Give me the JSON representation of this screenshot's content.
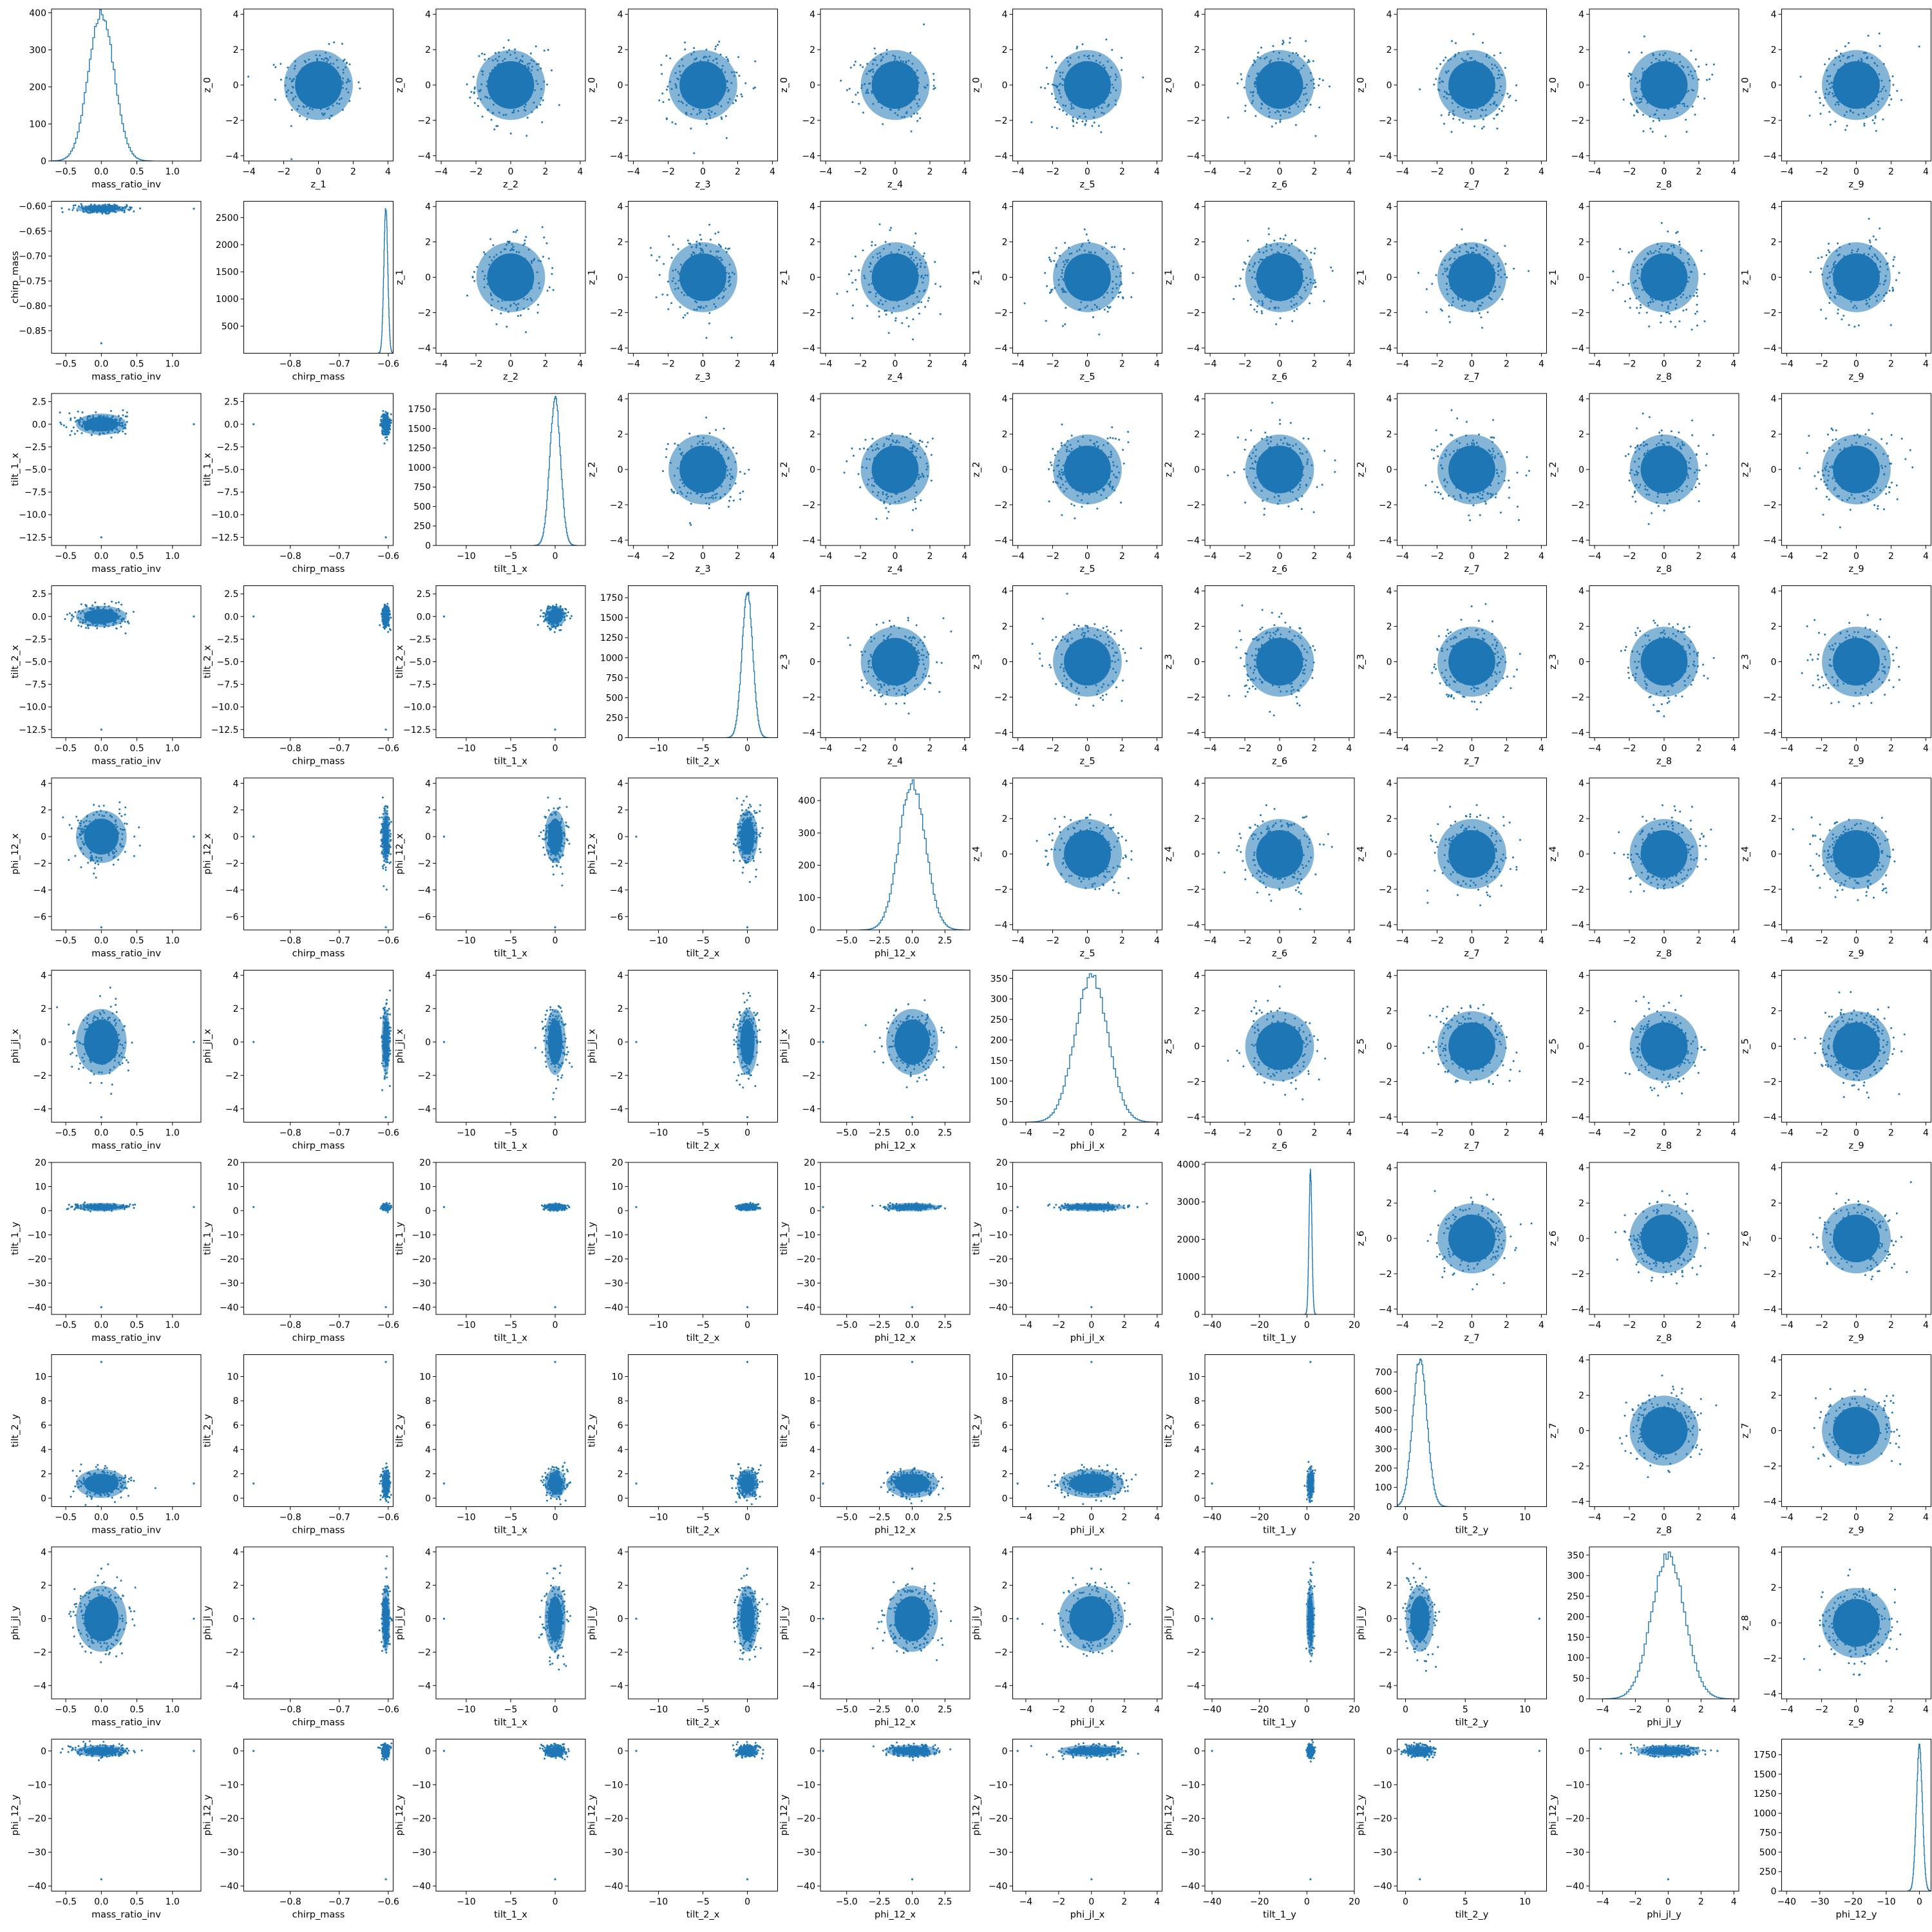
{
  "figure": {
    "type": "corner-matrix",
    "point_color": "#1f77b4",
    "hist_color": "#1f77b4",
    "background": "#ffffff"
  },
  "chart_data": {
    "type": "scatter-matrix",
    "description_of_layout": "10x10 grid: lower triangle = scatter of physical params, diagonal = histograms, upper triangle = scatter of latent z variables",
    "params": [
      {
        "name": "mass_ratio_inv",
        "lim": [
          -0.7,
          1.4
        ],
        "ticks": [
          -0.5,
          0.0,
          0.5,
          1.0
        ],
        "tick_labels": [
          "−0.5",
          "0.0",
          "0.5",
          "1.0"
        ],
        "center": 0.0,
        "spread": 0.18,
        "outlier": 1.3
      },
      {
        "name": "chirp_mass",
        "lim": [
          -0.895,
          -0.59
        ],
        "ticks": [
          -0.85,
          -0.8,
          -0.75,
          -0.7,
          -0.65,
          -0.6
        ],
        "tick_labels": [
          "−0.85",
          "−0.80",
          "−0.75",
          "−0.70",
          "−0.65",
          "−0.60"
        ],
        "x_ticks": [
          -0.8,
          -0.7,
          -0.6
        ],
        "x_tick_labels": [
          "−0.8",
          "−0.7",
          "−0.6"
        ],
        "center": -0.605,
        "spread": 0.004,
        "outlier": -0.875
      },
      {
        "name": "tilt_1_x",
        "lim": [
          -13.4,
          3.4
        ],
        "ticks": [
          -12.5,
          -10.0,
          -7.5,
          -5.0,
          -2.5,
          0.0,
          2.5
        ],
        "tick_labels": [
          "−12.5",
          "−10.0",
          "−7.5",
          "−5.0",
          "−2.5",
          "0.0",
          "2.5"
        ],
        "x_ticks": [
          -10,
          -5,
          0
        ],
        "x_tick_labels": [
          "−10",
          "−5",
          "0"
        ],
        "center": 0.0,
        "spread": 0.6,
        "outlier": -12.5
      },
      {
        "name": "tilt_2_x",
        "lim": [
          -13.4,
          3.4
        ],
        "ticks": [
          -12.5,
          -10.0,
          -7.5,
          -5.0,
          -2.5,
          0.0,
          2.5
        ],
        "tick_labels": [
          "−12.5",
          "−10.0",
          "−7.5",
          "−5.0",
          "−2.5",
          "0.0",
          "2.5"
        ],
        "x_ticks": [
          -10,
          -5,
          0
        ],
        "x_tick_labels": [
          "−10",
          "−5",
          "0"
        ],
        "center": 0.0,
        "spread": 0.6,
        "outlier": -12.5
      },
      {
        "name": "phi_12_x",
        "lim": [
          -7.0,
          4.4
        ],
        "ticks": [
          -6,
          -4,
          -2,
          0,
          2,
          4
        ],
        "tick_labels": [
          "−6",
          "−4",
          "−2",
          "0",
          "2",
          "4"
        ],
        "x_ticks": [
          -5.0,
          -2.5,
          0.0,
          2.5
        ],
        "x_tick_labels": [
          "−5.0",
          "−2.5",
          "0.0",
          "2.5"
        ],
        "center": 0.0,
        "spread": 1.0,
        "outlier": -6.8
      },
      {
        "name": "phi_jl_x",
        "lim": [
          -4.8,
          4.3
        ],
        "ticks": [
          -4,
          -2,
          0,
          2,
          4
        ],
        "tick_labels": [
          "−4",
          "−2",
          "0",
          "2",
          "4"
        ],
        "center": 0.0,
        "spread": 1.0,
        "outlier": -4.5
      },
      {
        "name": "tilt_1_y",
        "lim": [
          -43,
          20
        ],
        "ticks": [
          -40,
          -30,
          -20,
          -10,
          0,
          10,
          20
        ],
        "tick_labels": [
          "−40",
          "−30",
          "−20",
          "−10",
          "0",
          "10",
          "20"
        ],
        "x_ticks": [
          -40,
          -20,
          0,
          20
        ],
        "x_tick_labels": [
          "−40",
          "−20",
          "0",
          "20"
        ],
        "center": 1.5,
        "spread": 0.6,
        "outlier": -40
      },
      {
        "name": "tilt_2_y",
        "lim": [
          -0.7,
          11.8
        ],
        "ticks": [
          0,
          2,
          4,
          6,
          8,
          10
        ],
        "tick_labels": [
          "0",
          "2",
          "4",
          "6",
          "8",
          "10"
        ],
        "x_ticks": [
          0,
          5,
          10
        ],
        "x_tick_labels": [
          "0",
          "5",
          "10"
        ],
        "center": 1.2,
        "spread": 0.6,
        "outlier": 11.2
      },
      {
        "name": "phi_jl_y",
        "lim": [
          -4.8,
          4.3
        ],
        "ticks": [
          -4,
          -2,
          0,
          2,
          4
        ],
        "tick_labels": [
          "−4",
          "−2",
          "0",
          "2",
          "4"
        ],
        "center": 0.0,
        "spread": 1.0,
        "outlier": 3.0
      },
      {
        "name": "phi_12_y",
        "lim": [
          -41.5,
          3.5
        ],
        "ticks": [
          -40,
          -30,
          -20,
          -10,
          0
        ],
        "tick_labels": [
          "−40",
          "−30",
          "−20",
          "−10",
          "0"
        ],
        "x_ticks": [
          -40,
          -30,
          -20,
          -10,
          0
        ],
        "x_tick_labels": [
          "−40",
          "−30",
          "−20",
          "−10",
          "0"
        ],
        "center": 0.0,
        "spread": 0.9,
        "outlier": -38
      }
    ],
    "latent": {
      "names": [
        "z_0",
        "z_1",
        "z_2",
        "z_3",
        "z_4",
        "z_5",
        "z_6",
        "z_7",
        "z_8",
        "z_9"
      ],
      "lim": [
        -4.3,
        4.3
      ],
      "ticks": [
        -4,
        -2,
        0,
        2,
        4
      ],
      "tick_labels": [
        "−4",
        "−2",
        "0",
        "2",
        "4"
      ],
      "y_ticks": [
        -4,
        -2,
        0,
        2,
        4
      ],
      "y_tick_labels": [
        "−4",
        "−2",
        "0",
        "2",
        "4"
      ],
      "spread": 1.0
    },
    "histograms": [
      {
        "param": "mass_ratio_inv",
        "ylim": [
          0,
          410
        ],
        "yticks": [
          0,
          100,
          200,
          300,
          400
        ],
        "peak": 400
      },
      {
        "param": "chirp_mass",
        "ylim": [
          0,
          2800
        ],
        "yticks": [
          500,
          1000,
          1500,
          2000,
          2500
        ],
        "peak": 2700
      },
      {
        "param": "tilt_1_x",
        "ylim": [
          0,
          1950
        ],
        "yticks": [
          0,
          250,
          500,
          750,
          1000,
          1250,
          1500,
          1750
        ],
        "peak": 1880
      },
      {
        "param": "tilt_2_x",
        "ylim": [
          0,
          1900
        ],
        "yticks": [
          0,
          250,
          500,
          750,
          1000,
          1250,
          1500,
          1750
        ],
        "peak": 1820
      },
      {
        "param": "phi_12_x",
        "ylim": [
          0,
          470
        ],
        "yticks": [
          0,
          100,
          200,
          300,
          400
        ],
        "peak": 455
      },
      {
        "param": "phi_jl_x",
        "ylim": [
          0,
          370
        ],
        "yticks": [
          0,
          50,
          100,
          150,
          200,
          250,
          300,
          350
        ],
        "peak": 355
      },
      {
        "param": "tilt_1_y",
        "ylim": [
          0,
          4050
        ],
        "yticks": [
          0,
          1000,
          2000,
          3000,
          4000
        ],
        "peak": 3880
      },
      {
        "param": "tilt_2_y",
        "ylim": [
          0,
          790
        ],
        "yticks": [
          0,
          100,
          200,
          300,
          400,
          500,
          600,
          700
        ],
        "peak": 760
      },
      {
        "param": "phi_jl_y",
        "ylim": [
          0,
          370
        ],
        "yticks": [
          0,
          50,
          100,
          150,
          200,
          250,
          300,
          350
        ],
        "peak": 350
      },
      {
        "param": "phi_12_y",
        "ylim": [
          0,
          1950
        ],
        "yticks": [
          0,
          250,
          500,
          750,
          1000,
          1250,
          1500,
          1750
        ],
        "peak": 1850
      }
    ]
  }
}
